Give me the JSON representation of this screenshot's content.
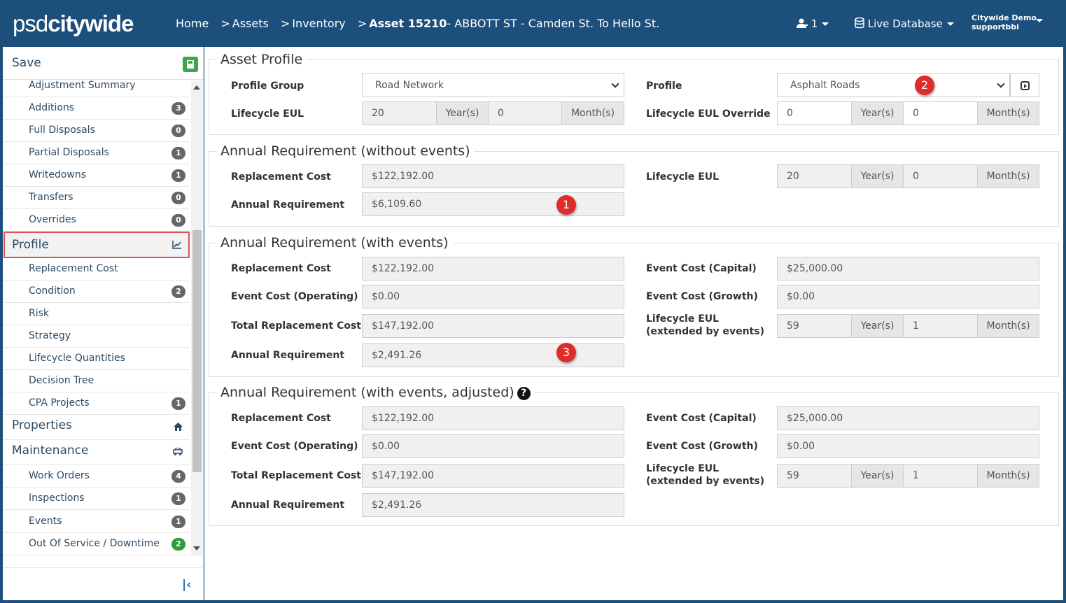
{
  "header": {
    "logo_light": "psd",
    "logo_bold": "citywide",
    "breadcrumb": [
      "Home",
      "Assets",
      "Inventory"
    ],
    "breadcrumb_current_bold": "Asset 15210",
    "breadcrumb_current_rest": "- ABBOTT ST - Camden St. To Hello St.",
    "user_count": "1",
    "database": "Live Database",
    "org_name": "Citywide Demo",
    "username": "supportbbi"
  },
  "sidebar": {
    "save_label": "Save",
    "items": [
      {
        "label": "Adjustment Summary",
        "badge": ""
      },
      {
        "label": "Additions",
        "badge": "3"
      },
      {
        "label": "Full Disposals",
        "badge": "0"
      },
      {
        "label": "Partial Disposals",
        "badge": "1"
      },
      {
        "label": "Writedowns",
        "badge": "1"
      },
      {
        "label": "Transfers",
        "badge": "0"
      },
      {
        "label": "Overrides",
        "badge": "0"
      },
      {
        "label": "Profile",
        "badge": ""
      },
      {
        "label": "Replacement Cost",
        "badge": ""
      },
      {
        "label": "Condition",
        "badge": "2"
      },
      {
        "label": "Risk",
        "badge": ""
      },
      {
        "label": "Strategy",
        "badge": ""
      },
      {
        "label": "Lifecycle Quantities",
        "badge": ""
      },
      {
        "label": "Decision Tree",
        "badge": ""
      },
      {
        "label": "CPA Projects",
        "badge": "1"
      },
      {
        "label": "Properties",
        "badge": ""
      },
      {
        "label": "Maintenance",
        "badge": ""
      },
      {
        "label": "Work Orders",
        "badge": "4"
      },
      {
        "label": "Inspections",
        "badge": "1"
      },
      {
        "label": "Events",
        "badge": "1"
      },
      {
        "label": "Out Of Service / Downtime",
        "badge": "2"
      }
    ]
  },
  "asset_profile": {
    "legend": "Asset Profile",
    "profile_group_label": "Profile Group",
    "profile_group_value": "Road Network",
    "profile_label": "Profile",
    "profile_value": "Asphalt Roads",
    "lifecycle_eul_label": "Lifecycle EUL",
    "eul_years": "20",
    "eul_months": "0",
    "override_label": "Lifecycle EUL Override",
    "override_years": "0",
    "override_months": "0",
    "years_unit": "Year(s)",
    "months_unit": "Month(s)"
  },
  "annual_without": {
    "legend": "Annual Requirement (without events)",
    "replacement_cost_label": "Replacement Cost",
    "replacement_cost": "$122,192.00",
    "annual_req_label": "Annual Requirement",
    "annual_req": "$6,109.60",
    "lifecycle_eul_label": "Lifecycle EUL",
    "eul_years": "20",
    "eul_months": "0"
  },
  "annual_with": {
    "legend": "Annual Requirement (with events)",
    "replacement_cost_label": "Replacement Cost",
    "replacement_cost": "$122,192.00",
    "event_operating_label": "Event Cost (Operating)",
    "event_operating": "$0.00",
    "total_replacement_label": "Total Replacement Cost",
    "total_replacement": "$147,192.00",
    "annual_req_label": "Annual Requirement",
    "annual_req": "$2,491.26",
    "event_capital_label": "Event Cost (Capital)",
    "event_capital": "$25,000.00",
    "event_growth_label": "Event Cost (Growth)",
    "event_growth": "$0.00",
    "eul_extended_label": "Lifecycle EUL (extended by events)",
    "eul_years": "59",
    "eul_months": "1"
  },
  "annual_adjusted": {
    "legend": "Annual Requirement (with events, adjusted)",
    "replacement_cost_label": "Replacement Cost",
    "replacement_cost": "$122,192.00",
    "event_operating_label": "Event Cost (Operating)",
    "event_operating": "$0.00",
    "total_replacement_label": "Total Replacement Cost",
    "total_replacement": "$147,192.00",
    "annual_req_label": "Annual Requirement",
    "annual_req": "$2,491.26",
    "event_capital_label": "Event Cost (Capital)",
    "event_capital": "$25,000.00",
    "event_growth_label": "Event Cost (Growth)",
    "event_growth": "$0.00",
    "eul_extended_label": "Lifecycle EUL (extended by events)",
    "eul_years": "59",
    "eul_months": "1"
  },
  "markers": [
    "1",
    "2",
    "3"
  ],
  "colors": {
    "header_bg": "#1d4f7c",
    "highlight_border": "#e05252",
    "marker_red": "#e02b2b",
    "save_green": "#3aa845",
    "badge_gray": "#666666",
    "badge_green": "#2d9b3c"
  }
}
